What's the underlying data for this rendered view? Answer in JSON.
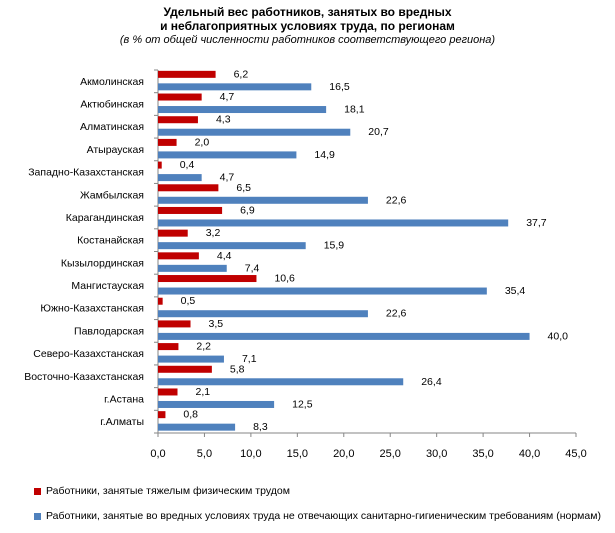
{
  "chart_data": {
    "type": "bar",
    "orientation": "horizontal",
    "title_line1": "Удельный вес работников, занятых во вредных",
    "title_line2": "и неблагоприятных  условиях труда,  по регионам",
    "subtitle": "(в % от общей численности работников соответствующего региона)",
    "categories": [
      "Акмолинская",
      "Актюбинская",
      "Алматинская",
      "Атырауская",
      "Западно-Казахстанская",
      "Жамбылская",
      "Карагандинская",
      "Костанайская",
      "Кызылординская",
      "Мангистауская",
      "Южно-Казахстанская",
      "Павлодарская",
      "Северо-Казахстанская",
      "Восточно-Казахстанская",
      "г.Астана",
      "г.Алматы"
    ],
    "series": [
      {
        "name": "Работники, занятые тяжелым физическим трудом",
        "color": "#C00000",
        "values": [
          6.2,
          4.7,
          4.3,
          2.0,
          0.4,
          6.5,
          6.9,
          3.2,
          4.4,
          10.6,
          0.5,
          3.5,
          2.2,
          5.8,
          2.1,
          0.8
        ],
        "labels": [
          "6,2",
          "4,7",
          "4,3",
          "2,0",
          "0,4",
          "6,5",
          "6,9",
          "3,2",
          "4,4",
          "10,6",
          "0,5",
          "3,5",
          "2,2",
          "5,8",
          "2,1",
          "0,8"
        ]
      },
      {
        "name": "Работники, занятые во вредных условиях труда не отвечающих санитарно-гигиеническим требованиям (нормам)",
        "color": "#4F81BD",
        "values": [
          16.5,
          18.1,
          20.7,
          14.9,
          4.7,
          22.6,
          37.7,
          15.9,
          7.4,
          35.4,
          22.6,
          40.0,
          7.1,
          26.4,
          12.5,
          8.3
        ],
        "labels": [
          "16,5",
          "18,1",
          "20,7",
          "14,9",
          "4,7",
          "22,6",
          "37,7",
          "15,9",
          "7,4",
          "35,4",
          "22,6",
          "40,0",
          "7,1",
          "26,4",
          "12,5",
          "8,3"
        ]
      }
    ],
    "x_ticks": [
      "0,0",
      "5,0",
      "10,0",
      "15,0",
      "20,0",
      "25,0",
      "30,0",
      "35,0",
      "40,0",
      "45,0"
    ],
    "xlim": [
      0,
      45
    ],
    "grid": false,
    "legend_position": "bottom"
  }
}
